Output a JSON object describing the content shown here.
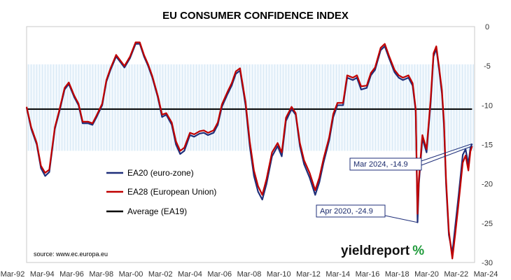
{
  "chart_data": {
    "type": "line",
    "title": "EU CONSUMER CONFIDENCE INDEX",
    "ylim": [
      -30,
      0
    ],
    "yticks": [
      0,
      -5,
      -10,
      -15,
      -20,
      -25,
      -30
    ],
    "xlim": [
      1992.17,
      2024.35
    ],
    "xticks": [
      "Mar-92",
      "Mar-94",
      "Mar-96",
      "Mar-98",
      "Mar-00",
      "Mar-02",
      "Mar-04",
      "Mar-06",
      "Mar-08",
      "Mar-10",
      "Mar-12",
      "Mar-14",
      "Mar-16",
      "Mar-18",
      "Mar-20",
      "Mar-22",
      "Mar-24"
    ],
    "band": {
      "from": -15.8,
      "to": -4.8
    },
    "series": [
      {
        "name": "EA20 (euro-zone)",
        "color": "#1f2f7a",
        "points": [
          [
            1992.17,
            -10.3
          ],
          [
            1992.5,
            -13
          ],
          [
            1992.9,
            -15
          ],
          [
            1993.2,
            -18
          ],
          [
            1993.5,
            -19
          ],
          [
            1993.8,
            -18.5
          ],
          [
            1994.2,
            -13
          ],
          [
            1994.5,
            -11
          ],
          [
            1994.9,
            -8
          ],
          [
            1995.2,
            -7.3
          ],
          [
            1995.6,
            -9
          ],
          [
            1995.9,
            -10
          ],
          [
            1996.2,
            -12.3
          ],
          [
            1996.6,
            -12.3
          ],
          [
            1996.9,
            -12.5
          ],
          [
            1997.2,
            -11.5
          ],
          [
            1997.6,
            -10
          ],
          [
            1997.9,
            -7
          ],
          [
            1998.2,
            -5.5
          ],
          [
            1998.6,
            -3.8
          ],
          [
            1998.9,
            -4.5
          ],
          [
            1999.2,
            -5.2
          ],
          [
            1999.6,
            -4
          ],
          [
            2000.0,
            -2.2
          ],
          [
            2000.3,
            -2.2
          ],
          [
            2000.6,
            -3.8
          ],
          [
            2000.9,
            -5
          ],
          [
            2001.2,
            -6.5
          ],
          [
            2001.6,
            -9
          ],
          [
            2001.9,
            -11.5
          ],
          [
            2002.2,
            -11.2
          ],
          [
            2002.6,
            -12.5
          ],
          [
            2002.9,
            -15
          ],
          [
            2003.2,
            -16.2
          ],
          [
            2003.5,
            -15.8
          ],
          [
            2003.9,
            -13.8
          ],
          [
            2004.2,
            -14
          ],
          [
            2004.6,
            -13.6
          ],
          [
            2004.9,
            -13.5
          ],
          [
            2005.2,
            -13.8
          ],
          [
            2005.6,
            -13.5
          ],
          [
            2005.9,
            -12.5
          ],
          [
            2006.2,
            -10.2
          ],
          [
            2006.6,
            -8.6
          ],
          [
            2006.9,
            -7.5
          ],
          [
            2007.2,
            -6
          ],
          [
            2007.5,
            -5.6
          ],
          [
            2007.9,
            -10
          ],
          [
            2008.2,
            -15.2
          ],
          [
            2008.5,
            -19
          ],
          [
            2008.8,
            -21
          ],
          [
            2009.1,
            -22
          ],
          [
            2009.4,
            -20
          ],
          [
            2009.8,
            -16.5
          ],
          [
            2010.2,
            -15.2
          ],
          [
            2010.5,
            -16.5
          ],
          [
            2010.8,
            -12
          ],
          [
            2011.2,
            -10.5
          ],
          [
            2011.5,
            -11.2
          ],
          [
            2011.8,
            -15.2
          ],
          [
            2012.1,
            -17.5
          ],
          [
            2012.5,
            -19.2
          ],
          [
            2012.9,
            -21.4
          ],
          [
            2013.2,
            -19.8
          ],
          [
            2013.5,
            -17.3
          ],
          [
            2013.9,
            -14.5
          ],
          [
            2014.2,
            -11.5
          ],
          [
            2014.5,
            -10
          ],
          [
            2014.9,
            -10
          ],
          [
            2015.2,
            -6.5
          ],
          [
            2015.6,
            -6.8
          ],
          [
            2015.9,
            -6.5
          ],
          [
            2016.2,
            -8
          ],
          [
            2016.6,
            -7.8
          ],
          [
            2016.9,
            -6.2
          ],
          [
            2017.2,
            -5.5
          ],
          [
            2017.6,
            -3
          ],
          [
            2017.9,
            -2.5
          ],
          [
            2018.2,
            -4
          ],
          [
            2018.6,
            -5.8
          ],
          [
            2018.9,
            -6.5
          ],
          [
            2019.2,
            -6.8
          ],
          [
            2019.6,
            -6.5
          ],
          [
            2019.9,
            -7.5
          ],
          [
            2020.0,
            -9
          ],
          [
            2020.12,
            -10.8
          ],
          [
            2020.25,
            -24.9
          ],
          [
            2020.35,
            -20
          ],
          [
            2020.6,
            -14.2
          ],
          [
            2020.9,
            -16
          ],
          [
            2021.2,
            -9.5
          ],
          [
            2021.4,
            -3.8
          ],
          [
            2021.6,
            -2.8
          ],
          [
            2021.8,
            -5.5
          ],
          [
            2022.0,
            -8.5
          ],
          [
            2022.15,
            -12.5
          ],
          [
            2022.3,
            -20
          ],
          [
            2022.5,
            -26.5
          ],
          [
            2022.75,
            -28.8
          ],
          [
            2022.95,
            -25.5
          ],
          [
            2023.2,
            -21.5
          ],
          [
            2023.5,
            -16.3
          ],
          [
            2023.7,
            -15.6
          ],
          [
            2023.9,
            -17.5
          ],
          [
            2024.05,
            -15.4
          ],
          [
            2024.17,
            -14.9
          ]
        ]
      },
      {
        "name": "EA28 (European Union)",
        "color": "#c00000",
        "points": [
          [
            1992.17,
            -10.2
          ],
          [
            1992.5,
            -12.8
          ],
          [
            1992.9,
            -14.8
          ],
          [
            1993.2,
            -17.7
          ],
          [
            1993.5,
            -18.6
          ],
          [
            1993.8,
            -18.2
          ],
          [
            1994.2,
            -12.8
          ],
          [
            1994.5,
            -10.8
          ],
          [
            1994.9,
            -7.8
          ],
          [
            1995.2,
            -7.1
          ],
          [
            1995.6,
            -8.8
          ],
          [
            1995.9,
            -9.8
          ],
          [
            1996.2,
            -12.1
          ],
          [
            1996.6,
            -12.1
          ],
          [
            1996.9,
            -12.3
          ],
          [
            1997.2,
            -11.3
          ],
          [
            1997.6,
            -9.8
          ],
          [
            1997.9,
            -6.8
          ],
          [
            1998.2,
            -5.3
          ],
          [
            1998.6,
            -3.6
          ],
          [
            1998.9,
            -4.3
          ],
          [
            1999.2,
            -5
          ],
          [
            1999.6,
            -3.8
          ],
          [
            2000.0,
            -2
          ],
          [
            2000.3,
            -2
          ],
          [
            2000.6,
            -3.6
          ],
          [
            2000.9,
            -4.8
          ],
          [
            2001.2,
            -6.3
          ],
          [
            2001.6,
            -8.8
          ],
          [
            2001.9,
            -11.2
          ],
          [
            2002.2,
            -11
          ],
          [
            2002.6,
            -12.2
          ],
          [
            2002.9,
            -14.6
          ],
          [
            2003.2,
            -15.8
          ],
          [
            2003.5,
            -15.4
          ],
          [
            2003.9,
            -13.5
          ],
          [
            2004.2,
            -13.7
          ],
          [
            2004.6,
            -13.3
          ],
          [
            2004.9,
            -13.2
          ],
          [
            2005.2,
            -13.5
          ],
          [
            2005.6,
            -13.2
          ],
          [
            2005.9,
            -12.2
          ],
          [
            2006.2,
            -9.9
          ],
          [
            2006.6,
            -8.3
          ],
          [
            2006.9,
            -7.2
          ],
          [
            2007.2,
            -5.7
          ],
          [
            2007.5,
            -5.3
          ],
          [
            2007.9,
            -9.6
          ],
          [
            2008.2,
            -14.6
          ],
          [
            2008.5,
            -18.3
          ],
          [
            2008.8,
            -20.3
          ],
          [
            2009.1,
            -21.4
          ],
          [
            2009.4,
            -19.4
          ],
          [
            2009.8,
            -16
          ],
          [
            2010.2,
            -14.8
          ],
          [
            2010.5,
            -16
          ],
          [
            2010.8,
            -11.6
          ],
          [
            2011.2,
            -10.2
          ],
          [
            2011.5,
            -11
          ],
          [
            2011.8,
            -14.8
          ],
          [
            2012.1,
            -17
          ],
          [
            2012.5,
            -18.6
          ],
          [
            2012.9,
            -20.8
          ],
          [
            2013.2,
            -19.2
          ],
          [
            2013.5,
            -16.8
          ],
          [
            2013.9,
            -14.1
          ],
          [
            2014.2,
            -11.1
          ],
          [
            2014.5,
            -9.7
          ],
          [
            2014.9,
            -9.7
          ],
          [
            2015.2,
            -6.2
          ],
          [
            2015.6,
            -6.5
          ],
          [
            2015.9,
            -6.2
          ],
          [
            2016.2,
            -7.6
          ],
          [
            2016.6,
            -7.5
          ],
          [
            2016.9,
            -5.9
          ],
          [
            2017.2,
            -5.2
          ],
          [
            2017.6,
            -2.7
          ],
          [
            2017.9,
            -2.2
          ],
          [
            2018.2,
            -3.7
          ],
          [
            2018.6,
            -5.5
          ],
          [
            2018.9,
            -6.2
          ],
          [
            2019.2,
            -6.5
          ],
          [
            2019.6,
            -6.2
          ],
          [
            2019.9,
            -7.2
          ],
          [
            2020.0,
            -8.7
          ],
          [
            2020.12,
            -10.5
          ],
          [
            2020.25,
            -23.8
          ],
          [
            2020.35,
            -19.4
          ],
          [
            2020.6,
            -13.8
          ],
          [
            2020.9,
            -15.6
          ],
          [
            2021.2,
            -9
          ],
          [
            2021.4,
            -3.4
          ],
          [
            2021.6,
            -2.5
          ],
          [
            2021.8,
            -5.2
          ],
          [
            2022.0,
            -8.1
          ],
          [
            2022.15,
            -12
          ],
          [
            2022.3,
            -19.4
          ],
          [
            2022.5,
            -26
          ],
          [
            2022.75,
            -29.5
          ],
          [
            2022.95,
            -26.5
          ],
          [
            2023.2,
            -22.5
          ],
          [
            2023.5,
            -17.3
          ],
          [
            2023.7,
            -16.4
          ],
          [
            2023.9,
            -18.3
          ],
          [
            2024.05,
            -15.9
          ],
          [
            2024.17,
            -15.2
          ]
        ]
      },
      {
        "name": "Average (EA19)",
        "color": "#000000",
        "points": [
          [
            1992.17,
            -10.5
          ],
          [
            2024.17,
            -10.5
          ]
        ]
      }
    ],
    "legend_position": "lower-left",
    "annotations": [
      {
        "text": "Mar 2024, -14.9",
        "x": 2024.17,
        "y": -14.9
      },
      {
        "text": "Apr 2020, -24.9",
        "x": 2020.25,
        "y": -24.9
      }
    ],
    "source": "source: www.ec.europa.eu"
  },
  "brand": {
    "main": "yieldreport",
    "pct": "%",
    "colors": {
      "main": "#111111",
      "pct_left": "#d0202a",
      "pct_right": "#1e9a3a"
    }
  }
}
